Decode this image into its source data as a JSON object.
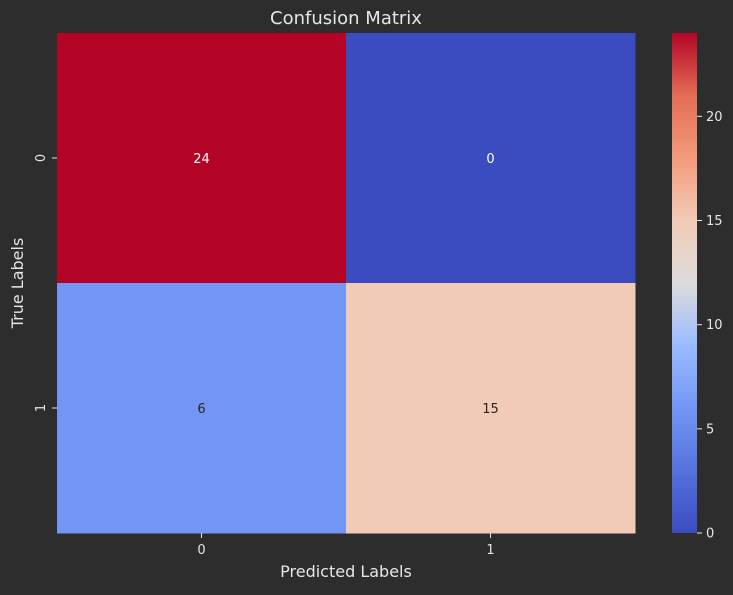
{
  "chart_data": {
    "type": "heatmap",
    "title": "Confusion Matrix",
    "xlabel": "Predicted Labels",
    "ylabel": "True Labels",
    "x_categories": [
      "0",
      "1"
    ],
    "y_categories": [
      "0",
      "1"
    ],
    "values": [
      [
        24,
        0
      ],
      [
        6,
        15
      ]
    ],
    "colormap": "coolwarm",
    "vmin": 0,
    "vmax": 24,
    "colorbar_ticks": [
      0,
      5,
      10,
      15,
      20
    ],
    "colors": {
      "background": "#2d2d2d",
      "text": "#e6e6e6"
    }
  }
}
